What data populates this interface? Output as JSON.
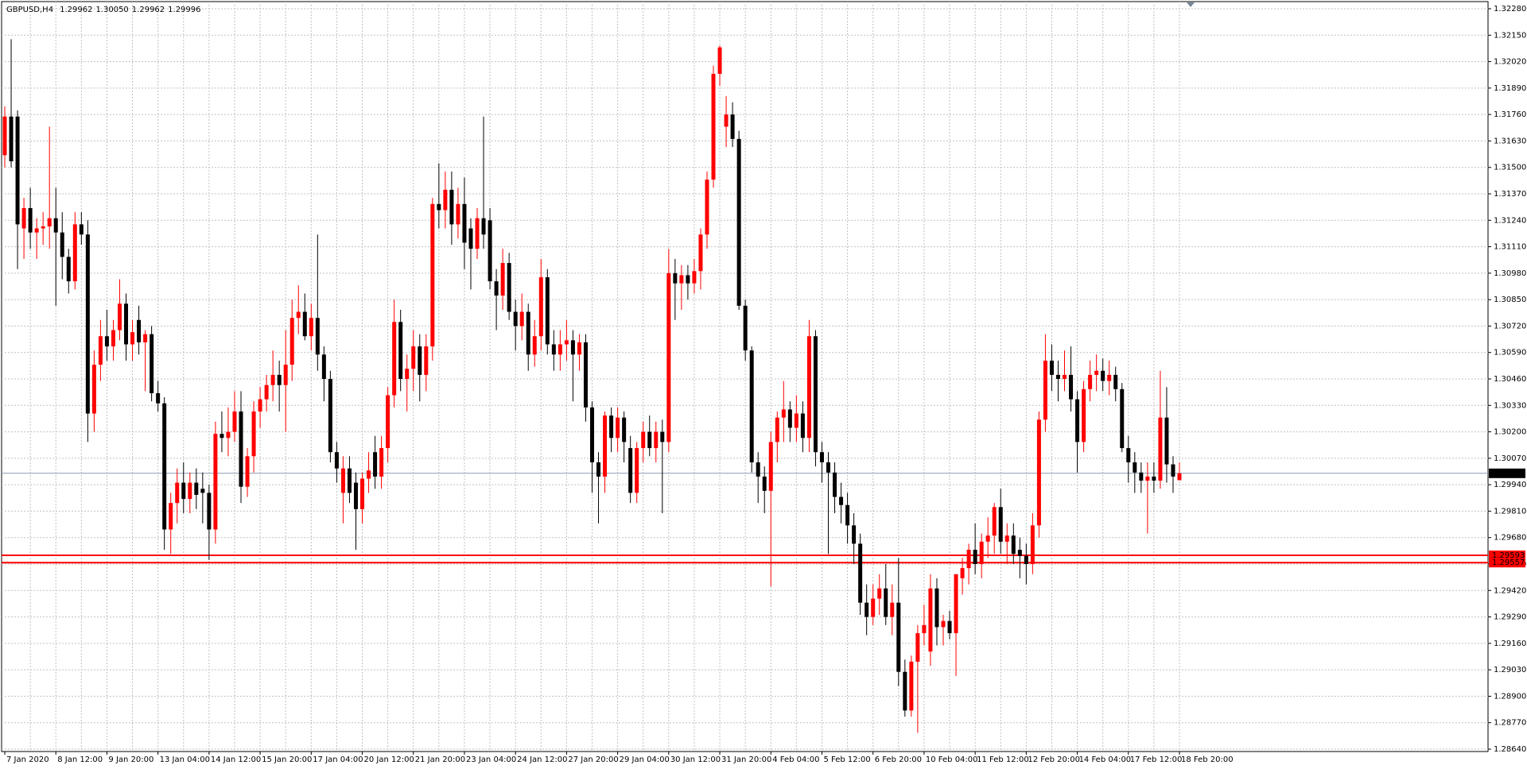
{
  "header": {
    "symbol": "GBPUSD,H4",
    "prices": [
      "1.29962",
      "1.30050",
      "1.29962",
      "1.29996"
    ]
  },
  "chart_data": {
    "type": "candlestick",
    "up_color": "#ff0000",
    "down_color": "#000000",
    "grid": true,
    "ylim": [
      1.2864,
      1.3228
    ],
    "yticks": [
      {
        "value": 1.3228,
        "label": "1.32280"
      },
      {
        "value": 1.3215,
        "label": "1.32150"
      },
      {
        "value": 1.3202,
        "label": "1.32020"
      },
      {
        "value": 1.3189,
        "label": "1.31890"
      },
      {
        "value": 1.3176,
        "label": "1.31760"
      },
      {
        "value": 1.3163,
        "label": "1.31630"
      },
      {
        "value": 1.315,
        "label": "1.31500"
      },
      {
        "value": 1.3137,
        "label": "1.31370"
      },
      {
        "value": 1.3124,
        "label": "1.31240"
      },
      {
        "value": 1.3111,
        "label": "1.31110"
      },
      {
        "value": 1.3098,
        "label": "1.30980"
      },
      {
        "value": 1.3085,
        "label": "1.30850"
      },
      {
        "value": 1.3072,
        "label": "1.30720"
      },
      {
        "value": 1.3059,
        "label": "1.30590"
      },
      {
        "value": 1.3046,
        "label": "1.30460"
      },
      {
        "value": 1.3033,
        "label": "1.30330"
      },
      {
        "value": 1.302,
        "label": "1.30200"
      },
      {
        "value": 1.3007,
        "label": "1.30070"
      },
      {
        "value": 1.2994,
        "label": "1.29940"
      },
      {
        "value": 1.2981,
        "label": "1.29810"
      },
      {
        "value": 1.2968,
        "label": "1.29680"
      },
      {
        "value": 1.2955,
        "label": "1.29550"
      },
      {
        "value": 1.2942,
        "label": "1.29420"
      },
      {
        "value": 1.2929,
        "label": "1.29290"
      },
      {
        "value": 1.2916,
        "label": "1.29160"
      },
      {
        "value": 1.2903,
        "label": "1.29030"
      },
      {
        "value": 1.289,
        "label": "1.28900"
      },
      {
        "value": 1.2877,
        "label": "1.28770"
      },
      {
        "value": 1.2864,
        "label": "1.28640"
      }
    ],
    "current_price": {
      "value": 1.29996,
      "label": "1.29996"
    },
    "levels": [
      {
        "value": 1.29593,
        "label": "1.29593"
      },
      {
        "value": 1.29557,
        "label": "1.29557"
      }
    ],
    "categories": [
      "7 Jan 2020",
      null,
      null,
      null,
      null,
      null,
      null,
      null,
      "8 Jan 12:00",
      null,
      null,
      null,
      null,
      null,
      null,
      null,
      "9 Jan 20:00",
      null,
      null,
      null,
      null,
      null,
      null,
      null,
      "13 Jan 04:00",
      null,
      null,
      null,
      null,
      null,
      null,
      null,
      "14 Jan 12:00",
      null,
      null,
      null,
      null,
      null,
      null,
      null,
      "15 Jan 20:00",
      null,
      null,
      null,
      null,
      null,
      null,
      null,
      "17 Jan 04:00",
      null,
      null,
      null,
      null,
      null,
      null,
      null,
      "20 Jan 12:00",
      null,
      null,
      null,
      null,
      null,
      null,
      null,
      "21 Jan 20:00",
      null,
      null,
      null,
      null,
      null,
      null,
      null,
      "23 Jan 04:00",
      null,
      null,
      null,
      null,
      null,
      null,
      null,
      "24 Jan 12:00",
      null,
      null,
      null,
      null,
      null,
      null,
      null,
      "27 Jan 20:00",
      null,
      null,
      null,
      null,
      null,
      null,
      null,
      "29 Jan 04:00",
      null,
      null,
      null,
      null,
      null,
      null,
      null,
      "30 Jan 12:00",
      null,
      null,
      null,
      null,
      null,
      null,
      null,
      "31 Jan 20:00",
      null,
      null,
      null,
      null,
      null,
      null,
      null,
      "4 Feb 04:00",
      null,
      null,
      null,
      null,
      null,
      null,
      null,
      "5 Feb 12:00",
      null,
      null,
      null,
      null,
      null,
      null,
      null,
      "6 Feb 20:00",
      null,
      null,
      null,
      null,
      null,
      null,
      null,
      "10 Feb 04:00",
      null,
      null,
      null,
      null,
      null,
      null,
      null,
      "11 Feb 12:00",
      null,
      null,
      null,
      null,
      null,
      null,
      null,
      "12 Feb 20:00",
      null,
      null,
      null,
      null,
      null,
      null,
      null,
      "14 Feb 04:00",
      null,
      null,
      null,
      null,
      null,
      null,
      null,
      "17 Feb 12:00",
      null,
      null,
      null,
      null,
      null,
      null,
      null,
      "18 Feb 20:00"
    ],
    "ohlc": [
      [
        1.3156,
        1.318,
        1.315,
        1.3175
      ],
      [
        1.3175,
        1.3213,
        1.315,
        1.3153
      ],
      [
        1.3175,
        1.3178,
        1.31,
        1.3122
      ],
      [
        1.312,
        1.3135,
        1.3105,
        1.313
      ],
      [
        1.313,
        1.314,
        1.311,
        1.3118
      ],
      [
        1.3118,
        1.3125,
        1.3105,
        1.312
      ],
      [
        1.312,
        1.3128,
        1.3112,
        1.3121
      ],
      [
        1.3121,
        1.317,
        1.311,
        1.3125
      ],
      [
        1.3125,
        1.314,
        1.3082,
        1.3118
      ],
      [
        1.3118,
        1.3128,
        1.3095,
        1.3106
      ],
      [
        1.3106,
        1.311,
        1.3088,
        1.3094
      ],
      [
        1.3094,
        1.3128,
        1.309,
        1.3122
      ],
      [
        1.3122,
        1.3128,
        1.3112,
        1.3117
      ],
      [
        1.3117,
        1.3124,
        1.3015,
        1.3029
      ],
      [
        1.3029,
        1.306,
        1.302,
        1.3053
      ],
      [
        1.3053,
        1.3075,
        1.3045,
        1.3067
      ],
      [
        1.3067,
        1.308,
        1.3055,
        1.3062
      ],
      [
        1.3062,
        1.3075,
        1.3055,
        1.307
      ],
      [
        1.307,
        1.3095,
        1.3065,
        1.3083
      ],
      [
        1.3083,
        1.3088,
        1.3055,
        1.3063
      ],
      [
        1.3063,
        1.3075,
        1.3055,
        1.3069
      ],
      [
        1.3075,
        1.3082,
        1.3058,
        1.3064
      ],
      [
        1.3064,
        1.307,
        1.304,
        1.3068
      ],
      [
        1.3068,
        1.3072,
        1.3035,
        1.3039
      ],
      [
        1.3039,
        1.3045,
        1.303,
        1.3034
      ],
      [
        1.3034,
        1.3037,
        1.2962,
        1.2972
      ],
      [
        1.2972,
        1.299,
        1.296,
        1.2985
      ],
      [
        1.2985,
        1.3002,
        1.2975,
        1.2995
      ],
      [
        1.2995,
        1.3005,
        1.298,
        1.2987
      ],
      [
        1.2987,
        1.3,
        1.298,
        1.2995
      ],
      [
        1.2995,
        1.3002,
        1.2982,
        1.2989
      ],
      [
        1.2992,
        1.3,
        1.2975,
        1.299
      ],
      [
        1.299,
        1.2994,
        1.2957,
        1.2972
      ],
      [
        1.2972,
        1.3025,
        1.2965,
        1.3019
      ],
      [
        1.3019,
        1.303,
        1.301,
        1.3017
      ],
      [
        1.3017,
        1.3032,
        1.3008,
        1.302
      ],
      [
        1.302,
        1.304,
        1.3015,
        1.303
      ],
      [
        1.303,
        1.304,
        1.2985,
        1.2993
      ],
      [
        1.2993,
        1.3012,
        1.2988,
        1.3008
      ],
      [
        1.3008,
        1.3035,
        1.3,
        1.303
      ],
      [
        1.303,
        1.3042,
        1.3022,
        1.3036
      ],
      [
        1.3036,
        1.3048,
        1.303,
        1.3043
      ],
      [
        1.3043,
        1.306,
        1.3035,
        1.3048
      ],
      [
        1.3048,
        1.3055,
        1.303,
        1.3043
      ],
      [
        1.3043,
        1.307,
        1.302,
        1.3053
      ],
      [
        1.3053,
        1.3085,
        1.3045,
        1.3076
      ],
      [
        1.3076,
        1.3092,
        1.3068,
        1.3079
      ],
      [
        1.3079,
        1.3088,
        1.3065,
        1.3067
      ],
      [
        1.3067,
        1.3083,
        1.306,
        1.3076
      ],
      [
        1.3076,
        1.3117,
        1.305,
        1.3058
      ],
      [
        1.3058,
        1.3062,
        1.3035,
        1.3046
      ],
      [
        1.3046,
        1.305,
        1.3005,
        1.301
      ],
      [
        1.301,
        1.3015,
        1.2995,
        1.3002
      ],
      [
        1.299,
        1.3008,
        1.2975,
        1.3002
      ],
      [
        1.3002,
        1.3008,
        1.2985,
        1.299
      ],
      [
        1.2995,
        1.3,
        1.2962,
        1.2982
      ],
      [
        1.2982,
        1.3,
        1.2975,
        1.2997
      ],
      [
        1.2997,
        1.301,
        1.299,
        1.3001
      ],
      [
        1.301,
        1.3018,
        1.2992,
        1.2998
      ],
      [
        1.2998,
        1.3018,
        1.2992,
        1.3012
      ],
      [
        1.3012,
        1.3042,
        1.3005,
        1.3038
      ],
      [
        1.3038,
        1.3085,
        1.3032,
        1.3074
      ],
      [
        1.3074,
        1.308,
        1.304,
        1.3046
      ],
      [
        1.3046,
        1.3058,
        1.303,
        1.3051
      ],
      [
        1.3051,
        1.307,
        1.304,
        1.3062
      ],
      [
        1.3062,
        1.3068,
        1.3035,
        1.3048
      ],
      [
        1.3048,
        1.3068,
        1.304,
        1.3062
      ],
      [
        1.3062,
        1.3135,
        1.3055,
        1.3132
      ],
      [
        1.3132,
        1.3152,
        1.312,
        1.3129
      ],
      [
        1.3129,
        1.3148,
        1.312,
        1.3139
      ],
      [
        1.3139,
        1.3148,
        1.3112,
        1.3122
      ],
      [
        1.3122,
        1.314,
        1.3115,
        1.3132
      ],
      [
        1.3132,
        1.3145,
        1.31,
        1.3113
      ],
      [
        1.312,
        1.3125,
        1.309,
        1.311
      ],
      [
        1.311,
        1.313,
        1.3105,
        1.3125
      ],
      [
        1.3125,
        1.3175,
        1.311,
        1.3117
      ],
      [
        1.3124,
        1.313,
        1.309,
        1.3094
      ],
      [
        1.3094,
        1.31,
        1.307,
        1.3087
      ],
      [
        1.3087,
        1.311,
        1.308,
        1.3103
      ],
      [
        1.3103,
        1.3108,
        1.3075,
        1.3079
      ],
      [
        1.3079,
        1.3085,
        1.306,
        1.3072
      ],
      [
        1.3072,
        1.3088,
        1.3065,
        1.3079
      ],
      [
        1.3079,
        1.3083,
        1.305,
        1.3058
      ],
      [
        1.3058,
        1.3075,
        1.3052,
        1.3067
      ],
      [
        1.3067,
        1.3105,
        1.306,
        1.3096
      ],
      [
        1.3096,
        1.31,
        1.3058,
        1.3063
      ],
      [
        1.3063,
        1.307,
        1.305,
        1.3058
      ],
      [
        1.3058,
        1.307,
        1.305,
        1.3063
      ],
      [
        1.3063,
        1.3075,
        1.3055,
        1.3065
      ],
      [
        1.3065,
        1.307,
        1.3035,
        1.3058
      ],
      [
        1.3058,
        1.3068,
        1.305,
        1.3064
      ],
      [
        1.3064,
        1.3068,
        1.3025,
        1.3032
      ],
      [
        1.3032,
        1.3035,
        1.299,
        1.3005
      ],
      [
        1.3005,
        1.301,
        1.2975,
        1.2998
      ],
      [
        1.2998,
        1.303,
        1.299,
        1.3028
      ],
      [
        1.3028,
        1.3032,
        1.301,
        1.3017
      ],
      [
        1.3017,
        1.3032,
        1.301,
        1.3027
      ],
      [
        1.3027,
        1.303,
        1.3005,
        1.3015
      ],
      [
        1.3012,
        1.3018,
        1.2985,
        1.299
      ],
      [
        1.299,
        1.3015,
        1.2985,
        1.3012
      ],
      [
        1.3012,
        1.3025,
        1.3005,
        1.302
      ],
      [
        1.302,
        1.3028,
        1.3008,
        1.3012
      ],
      [
        1.3012,
        1.3025,
        1.3005,
        1.302
      ],
      [
        1.302,
        1.3026,
        1.298,
        1.3015
      ],
      [
        1.3015,
        1.311,
        1.301,
        1.3098
      ],
      [
        1.3098,
        1.3105,
        1.3075,
        1.3093
      ],
      [
        1.3093,
        1.3102,
        1.308,
        1.3097
      ],
      [
        1.3097,
        1.3102,
        1.3085,
        1.3093
      ],
      [
        1.3093,
        1.3105,
        1.3088,
        1.3099
      ],
      [
        1.3099,
        1.312,
        1.309,
        1.3117
      ],
      [
        1.3117,
        1.3148,
        1.311,
        1.3144
      ],
      [
        1.3144,
        1.32,
        1.314,
        1.3196
      ],
      [
        1.3196,
        1.321,
        1.319,
        1.3209
      ],
      [
        1.317,
        1.3185,
        1.316,
        1.3176
      ],
      [
        1.3176,
        1.3182,
        1.316,
        1.3164
      ],
      [
        1.3164,
        1.3168,
        1.308,
        1.3082
      ],
      [
        1.3082,
        1.3085,
        1.3055,
        1.306
      ],
      [
        1.306,
        1.3062,
        1.3,
        1.3005
      ],
      [
        1.3005,
        1.301,
        1.2985,
        1.2998
      ],
      [
        1.2998,
        1.3003,
        1.298,
        1.2991
      ],
      [
        1.2991,
        1.302,
        1.2944,
        1.3015
      ],
      [
        1.3015,
        1.303,
        1.3005,
        1.3027
      ],
      [
        1.3027,
        1.3045,
        1.3015,
        1.3031
      ],
      [
        1.3031,
        1.3035,
        1.3015,
        1.3022
      ],
      [
        1.3022,
        1.3038,
        1.3015,
        1.3029
      ],
      [
        1.3029,
        1.3035,
        1.301,
        1.3017
      ],
      [
        1.3017,
        1.3075,
        1.301,
        1.3067
      ],
      [
        1.3067,
        1.307,
        1.3003,
        1.301
      ],
      [
        1.301,
        1.3015,
        1.2995,
        1.3005
      ],
      [
        1.3005,
        1.301,
        1.296,
        1.3
      ],
      [
        1.3,
        1.3005,
        1.298,
        1.2988
      ],
      [
        1.2988,
        1.2995,
        1.2975,
        1.2984
      ],
      [
        1.2984,
        1.299,
        1.2965,
        1.2974
      ],
      [
        1.2974,
        1.298,
        1.2955,
        1.2965
      ],
      [
        1.2965,
        1.297,
        1.293,
        1.2936
      ],
      [
        1.2936,
        1.2945,
        1.292,
        1.2929
      ],
      [
        1.2929,
        1.2945,
        1.2925,
        1.2938
      ],
      [
        1.2938,
        1.295,
        1.293,
        1.2943
      ],
      [
        1.2943,
        1.2955,
        1.2925,
        1.2929
      ],
      [
        1.2929,
        1.2945,
        1.292,
        1.2936
      ],
      [
        1.2936,
        1.2958,
        1.2895,
        1.2902
      ],
      [
        1.2902,
        1.2908,
        1.288,
        1.2883
      ],
      [
        1.2883,
        1.291,
        1.288,
        1.2907
      ],
      [
        1.2907,
        1.2925,
        1.2872,
        1.2921
      ],
      [
        1.2921,
        1.2935,
        1.2915,
        1.2925
      ],
      [
        1.2912,
        1.295,
        1.2905,
        1.2943
      ],
      [
        1.2943,
        1.2948,
        1.2915,
        1.2924
      ],
      [
        1.2924,
        1.293,
        1.2915,
        1.2927
      ],
      [
        1.2927,
        1.2932,
        1.2918,
        1.2921
      ],
      [
        1.2921,
        1.295,
        1.29,
        1.295
      ],
      [
        1.2948,
        1.2958,
        1.294,
        1.2953
      ],
      [
        1.2953,
        1.2965,
        1.2945,
        1.2962
      ],
      [
        1.2962,
        1.2975,
        1.295,
        1.2955
      ],
      [
        1.2955,
        1.297,
        1.2948,
        1.2966
      ],
      [
        1.2966,
        1.2978,
        1.2958,
        1.2969
      ],
      [
        1.2969,
        1.2985,
        1.296,
        1.2983
      ],
      [
        1.2983,
        1.2992,
        1.296,
        1.2966
      ],
      [
        1.2966,
        1.2975,
        1.2955,
        1.2969
      ],
      [
        1.2969,
        1.2975,
        1.2955,
        1.296
      ],
      [
        1.2962,
        1.2968,
        1.2948,
        1.2959
      ],
      [
        1.2959,
        1.2965,
        1.2945,
        1.2955
      ],
      [
        1.2955,
        1.298,
        1.295,
        1.2974
      ],
      [
        1.2974,
        1.303,
        1.2968,
        1.3026
      ],
      [
        1.3026,
        1.3068,
        1.302,
        1.3055
      ],
      [
        1.3055,
        1.3063,
        1.304,
        1.3048
      ],
      [
        1.3048,
        1.3055,
        1.3035,
        1.3046
      ],
      [
        1.3046,
        1.306,
        1.304,
        1.3048
      ],
      [
        1.3048,
        1.3062,
        1.303,
        1.3036
      ],
      [
        1.3036,
        1.304,
        1.3,
        1.3015
      ],
      [
        1.3015,
        1.3045,
        1.301,
        1.3041
      ],
      [
        1.3041,
        1.3055,
        1.3035,
        1.3048
      ],
      [
        1.3048,
        1.3058,
        1.304,
        1.305
      ],
      [
        1.305,
        1.3056,
        1.304,
        1.3045
      ],
      [
        1.3045,
        1.3055,
        1.3038,
        1.3048
      ],
      [
        1.3048,
        1.3052,
        1.3035,
        1.3041
      ],
      [
        1.3041,
        1.3044,
        1.301,
        1.3012
      ],
      [
        1.3012,
        1.3018,
        1.2995,
        1.3005
      ],
      [
        1.3005,
        1.301,
        1.299,
        1.3
      ],
      [
        1.3,
        1.3005,
        1.299,
        1.2996
      ],
      [
        1.2996,
        1.3005,
        1.297,
        1.2998
      ],
      [
        1.2998,
        1.3005,
        1.299,
        1.2996
      ],
      [
        1.2996,
        1.305,
        1.2992,
        1.3027
      ],
      [
        1.3027,
        1.3042,
        1.2995,
        1.3004
      ],
      [
        1.3004,
        1.3008,
        1.299,
        1.2998
      ],
      [
        1.29962,
        1.3005,
        1.29962,
        1.29996
      ]
    ]
  }
}
